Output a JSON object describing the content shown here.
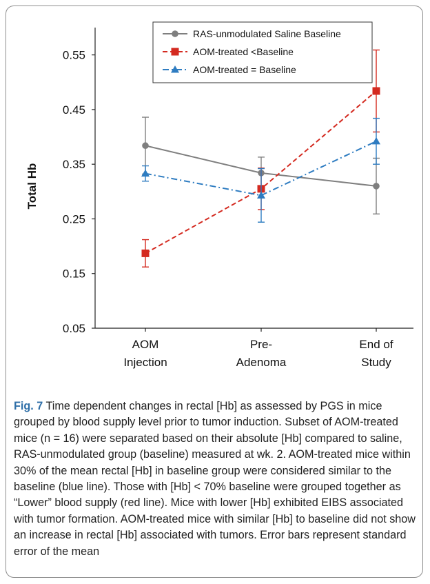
{
  "chart_data": {
    "type": "line",
    "ylabel": "Total Hb",
    "xlabel": "",
    "categories": [
      "AOM Injection",
      "Pre-Adenoma",
      "End of Study"
    ],
    "category_lines": [
      [
        "AOM",
        "Injection"
      ],
      [
        "Pre-",
        "Adenoma"
      ],
      [
        "End of",
        "Study"
      ]
    ],
    "y_ticks": [
      "0.05",
      "0.15",
      "0.25",
      "0.35",
      "0.45",
      "0.55"
    ],
    "ylim": [
      0.05,
      0.6
    ],
    "grid": false,
    "legend_position": "top-center",
    "series": [
      {
        "name": "RAS-unmodulated Saline Baseline",
        "values": [
          0.384,
          0.334,
          0.31
        ],
        "errors": [
          0.052,
          0.029,
          0.051
        ],
        "color": "#7f7f7f",
        "marker": "circle",
        "dash": "solid"
      },
      {
        "name": "AOM-treated <Baseline",
        "values": [
          0.187,
          0.305,
          0.484
        ],
        "errors": [
          0.025,
          0.038,
          0.075
        ],
        "color": "#d42a20",
        "marker": "square",
        "dash": "dashed"
      },
      {
        "name": "AOM-treated = Baseline",
        "values": [
          0.333,
          0.293,
          0.392
        ],
        "errors": [
          0.014,
          0.049,
          0.042
        ],
        "color": "#2e7cc1",
        "marker": "triangle",
        "dash": "dashdot"
      }
    ]
  },
  "caption": {
    "label": "Fig. 7",
    "text": "Time dependent changes in rectal [Hb] as assessed by PGS in mice grouped by blood supply level prior to tumor induction. Subset of AOM-treated mice (n = 16) were separated based on their absolute [Hb] compared to saline, RAS-unmodulated group (baseline) measured at wk. 2. AOM-treated mice within 30% of the mean rectal [Hb] in baseline group were considered similar to the baseline (blue line). Those with [Hb] < 70% baseline were grouped together as “Lower” blood supply (red line). Mice with lower [Hb] exhibited EIBS associated with tumor formation. AOM-treated mice with similar [Hb] to baseline did not show an increase in rectal [Hb] associated with tumors. Error bars represent standard error of the mean"
  }
}
